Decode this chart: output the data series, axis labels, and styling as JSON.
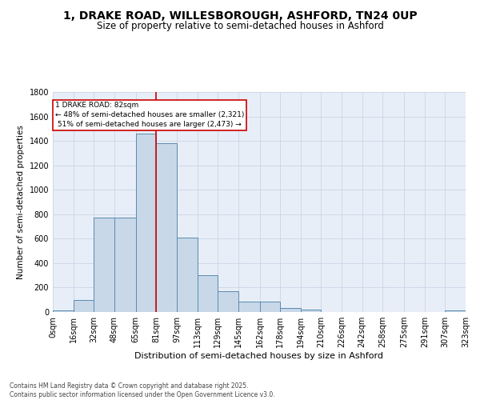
{
  "title": "1, DRAKE ROAD, WILLESBOROUGH, ASHFORD, TN24 0UP",
  "subtitle": "Size of property relative to semi-detached houses in Ashford",
  "xlabel": "Distribution of semi-detached houses by size in Ashford",
  "ylabel": "Number of semi-detached properties",
  "footer_line1": "Contains HM Land Registry data © Crown copyright and database right 2025.",
  "footer_line2": "Contains public sector information licensed under the Open Government Licence v3.0.",
  "property_label": "1 DRAKE ROAD: 82sqm",
  "pct_smaller": 48,
  "count_smaller": 2321,
  "pct_larger": 51,
  "count_larger": 2473,
  "bin_edges": [
    0,
    16,
    32,
    48,
    65,
    81,
    97,
    113,
    129,
    145,
    162,
    178,
    194,
    210,
    226,
    242,
    258,
    275,
    291,
    307,
    323
  ],
  "bin_labels": [
    "0sqm",
    "16sqm",
    "32sqm",
    "48sqm",
    "65sqm",
    "81sqm",
    "97sqm",
    "113sqm",
    "129sqm",
    "145sqm",
    "162sqm",
    "178sqm",
    "194sqm",
    "210sqm",
    "226sqm",
    "242sqm",
    "258sqm",
    "275sqm",
    "291sqm",
    "307sqm",
    "323sqm"
  ],
  "counts": [
    15,
    100,
    775,
    775,
    1460,
    1380,
    610,
    300,
    170,
    85,
    85,
    30,
    18,
    0,
    0,
    0,
    0,
    0,
    0,
    15
  ],
  "bar_color": "#c8d8e8",
  "bar_edge_color": "#5a8ab0",
  "vline_color": "#cc0000",
  "vline_x": 81,
  "grid_color": "#c8d4e4",
  "bg_color": "#e8eef8",
  "annotation_box_edge": "#cc0000",
  "ylim": [
    0,
    1800
  ],
  "yticks": [
    0,
    200,
    400,
    600,
    800,
    1000,
    1200,
    1400,
    1600,
    1800
  ],
  "title_fontsize": 10,
  "subtitle_fontsize": 8.5,
  "ylabel_fontsize": 7.5,
  "xlabel_fontsize": 8,
  "tick_fontsize": 7,
  "ann_fontsize": 6.5,
  "footer_fontsize": 5.5
}
